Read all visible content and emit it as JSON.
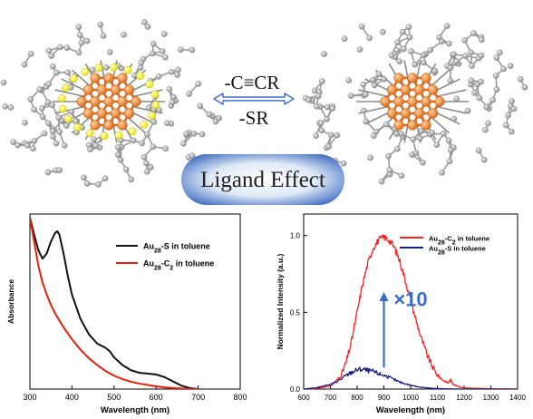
{
  "top": {
    "arrow_top_label": "-C≡CR",
    "arrow_bottom_label": "-SR",
    "center_label": "Ligand Effect",
    "colors": {
      "gold": "#e8822a",
      "bond": "#e06a1e",
      "sulfur": "#ffff33",
      "carbon": "#b5b5b5",
      "arrow": "#3f6fd0",
      "pill_center": "#e8f0fa",
      "pill_edge": "#4a76c4"
    }
  },
  "chart_data": [
    {
      "type": "line",
      "xlabel": "Wavelength (nm)",
      "ylabel": "Absorbance",
      "xlim": [
        300,
        800
      ],
      "xticks": [
        300,
        400,
        500,
        600,
        700,
        800
      ],
      "grid": false,
      "legend_position": "top-right",
      "legend_box": false,
      "series": [
        {
          "name": "Au28-S in toluene",
          "color": "#111111",
          "x": [
            300,
            310,
            320,
            330,
            340,
            350,
            360,
            365,
            370,
            380,
            390,
            400,
            420,
            440,
            460,
            480,
            490,
            500,
            520,
            540,
            560,
            580,
            600,
            620,
            640,
            660,
            680,
            700
          ],
          "y": [
            1.0,
            0.9,
            0.81,
            0.76,
            0.79,
            0.86,
            0.91,
            0.92,
            0.9,
            0.79,
            0.66,
            0.55,
            0.41,
            0.32,
            0.265,
            0.24,
            0.22,
            0.185,
            0.14,
            0.11,
            0.095,
            0.09,
            0.085,
            0.07,
            0.045,
            0.02,
            0.006,
            0.0
          ]
        },
        {
          "name": "Au28-C2 in toluene",
          "color": "#e8200a",
          "x": [
            300,
            310,
            320,
            330,
            340,
            350,
            360,
            380,
            400,
            420,
            440,
            460,
            480,
            500,
            520,
            540,
            560,
            580,
            600,
            620,
            640,
            660,
            680,
            700
          ],
          "y": [
            1.0,
            0.86,
            0.72,
            0.62,
            0.55,
            0.49,
            0.44,
            0.36,
            0.29,
            0.23,
            0.18,
            0.14,
            0.105,
            0.078,
            0.058,
            0.043,
            0.032,
            0.024,
            0.016,
            0.01,
            0.006,
            0.003,
            0.001,
            0.0
          ]
        }
      ]
    },
    {
      "type": "line",
      "xlabel": "Wavelength (nm)",
      "ylabel": "Normalized Intensity (a.u.)",
      "xlim": [
        600,
        1400
      ],
      "ylim": [
        0,
        1.0
      ],
      "xticks": [
        600,
        700,
        800,
        900,
        1000,
        1100,
        1200,
        1300,
        1400
      ],
      "yticks": [
        0.0,
        0.5,
        1.0
      ],
      "ytick_labels": [
        "0.0",
        "0.5",
        "1.0"
      ],
      "grid": false,
      "legend_position": "top-left",
      "legend_box": false,
      "annotation": "×10",
      "annotation_color": "#3a6cc8",
      "arrow_color": "#3a6cc8",
      "arrow_x": 900,
      "arrow_y_from": 0.14,
      "arrow_y_to": 0.62,
      "annotation_x": 1000,
      "annotation_y": 0.54,
      "series": [
        {
          "name": "Au28-C2 in toluene",
          "color": "#ff1f1f",
          "x": [
            600,
            650,
            700,
            720,
            740,
            760,
            780,
            800,
            820,
            840,
            860,
            880,
            900,
            920,
            940,
            960,
            980,
            1000,
            1020,
            1040,
            1060,
            1080,
            1100,
            1120,
            1140,
            1150,
            1160,
            1180,
            1200,
            1300,
            1400
          ],
          "y": [
            0.0,
            0.005,
            0.02,
            0.05,
            0.09,
            0.18,
            0.32,
            0.5,
            0.68,
            0.82,
            0.92,
            0.97,
            0.99,
            0.97,
            0.92,
            0.83,
            0.71,
            0.58,
            0.45,
            0.33,
            0.23,
            0.15,
            0.09,
            0.06,
            0.04,
            0.06,
            0.03,
            0.015,
            0.008,
            0.002,
            0.0
          ]
        },
        {
          "name": "Au28-S in toluene",
          "color": "#1a1f80",
          "x": [
            600,
            650,
            700,
            720,
            740,
            760,
            780,
            800,
            820,
            840,
            860,
            880,
            900,
            920,
            940,
            960,
            980,
            1000,
            1020,
            1040,
            1060,
            1080,
            1100,
            1120,
            1150,
            1200,
            1300,
            1400
          ],
          "y": [
            0.0,
            0.01,
            0.03,
            0.045,
            0.065,
            0.09,
            0.11,
            0.125,
            0.13,
            0.12,
            0.115,
            0.1,
            0.09,
            0.075,
            0.06,
            0.045,
            0.035,
            0.025,
            0.018,
            0.012,
            0.008,
            0.005,
            0.003,
            0.002,
            0.001,
            0.0,
            0.0,
            0.0
          ]
        }
      ]
    }
  ]
}
